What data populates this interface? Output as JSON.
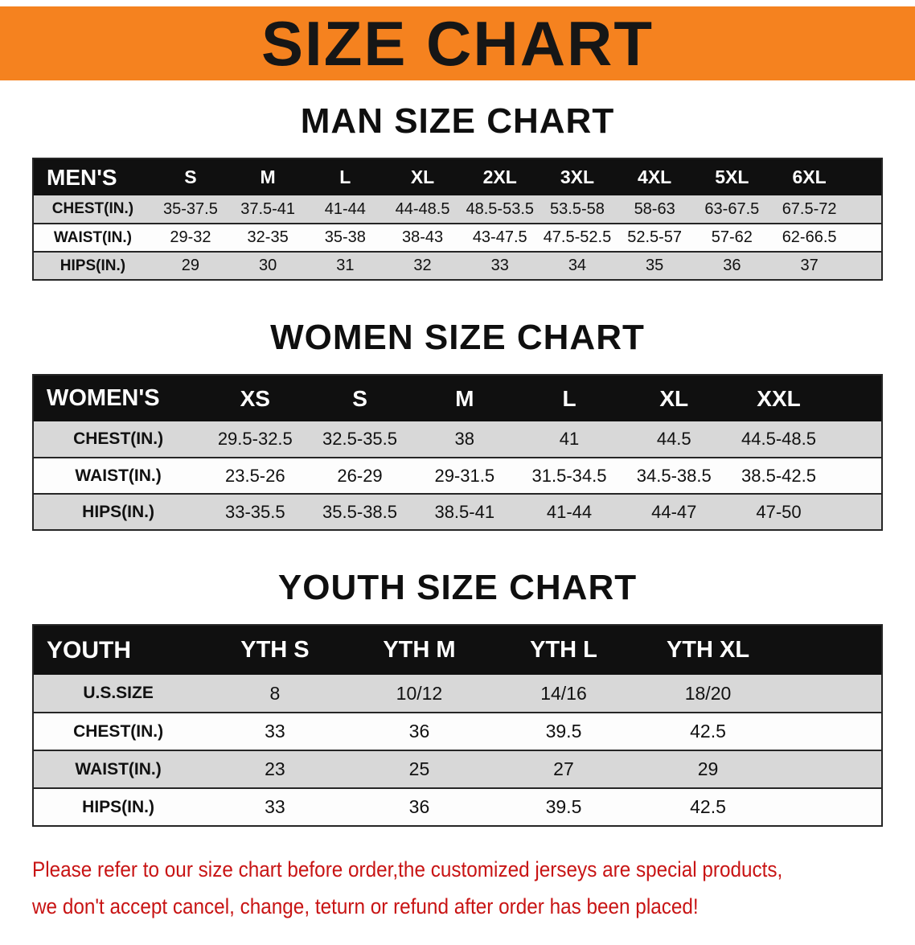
{
  "banner": {
    "title": "SIZE CHART",
    "background_color": "#F5821F",
    "text_color": "#161616"
  },
  "sections": [
    {
      "id": "men",
      "heading": "MAN SIZE CHART",
      "table": {
        "columns": [
          "MEN'S",
          "S",
          "M",
          "L",
          "XL",
          "2XL",
          "3XL",
          "4XL",
          "5XL",
          "6XL"
        ],
        "rows": [
          {
            "label": "CHEST(IN.)",
            "values": [
              "35-37.5",
              "37.5-41",
              "41-44",
              "44-48.5",
              "48.5-53.5",
              "53.5-58",
              "58-63",
              "63-67.5",
              "67.5-72"
            ]
          },
          {
            "label": "WAIST(IN.)",
            "values": [
              "29-32",
              "32-35",
              "35-38",
              "38-43",
              "43-47.5",
              "47.5-52.5",
              "52.5-57",
              "57-62",
              "62-66.5"
            ]
          },
          {
            "label": "HIPS(IN.)",
            "values": [
              "29",
              "30",
              "31",
              "32",
              "33",
              "34",
              "35",
              "36",
              "37"
            ]
          }
        ],
        "trailing_space_pct": 4
      }
    },
    {
      "id": "women",
      "heading": "WOMEN SIZE CHART",
      "table": {
        "columns": [
          "WOMEN'S",
          "XS",
          "S",
          "M",
          "L",
          "XL",
          "XXL"
        ],
        "rows": [
          {
            "label": "CHEST(IN.)",
            "values": [
              "29.5-32.5",
              "32.5-35.5",
              "38",
              "41",
              "44.5",
              "44.5-48.5"
            ]
          },
          {
            "label": "WAIST(IN.)",
            "values": [
              "23.5-26",
              "26-29",
              "29-31.5",
              "31.5-34.5",
              "34.5-38.5",
              "38.5-42.5"
            ]
          },
          {
            "label": "HIPS(IN.)",
            "values": [
              "33-35.5",
              "35.5-38.5",
              "38.5-41",
              "41-44",
              "44-47",
              "47-50"
            ]
          }
        ],
        "trailing_space_pct": 6
      }
    },
    {
      "id": "youth",
      "heading": "YOUTH SIZE CHART",
      "table": {
        "columns": [
          "YOUTH",
          "YTH S",
          "YTH M",
          "YTH L",
          "YTH XL"
        ],
        "rows": [
          {
            "label": "U.S.SIZE",
            "values": [
              "8",
              "10/12",
              "14/16",
              "18/20"
            ]
          },
          {
            "label": "CHEST(IN.)",
            "values": [
              "33",
              "36",
              "39.5",
              "42.5"
            ]
          },
          {
            "label": "WAIST(IN.)",
            "values": [
              "23",
              "25",
              "27",
              "29"
            ]
          },
          {
            "label": "HIPS(IN.)",
            "values": [
              "33",
              "36",
              "39.5",
              "42.5"
            ]
          }
        ],
        "trailing_space_pct": 12
      }
    }
  ],
  "footer_note": {
    "color": "#C81414",
    "lines": [
      "Please refer to our size chart before order,the customized jerseys are special products,",
      "we don't accept cancel, change, teturn or refund after order has been placed!"
    ]
  }
}
